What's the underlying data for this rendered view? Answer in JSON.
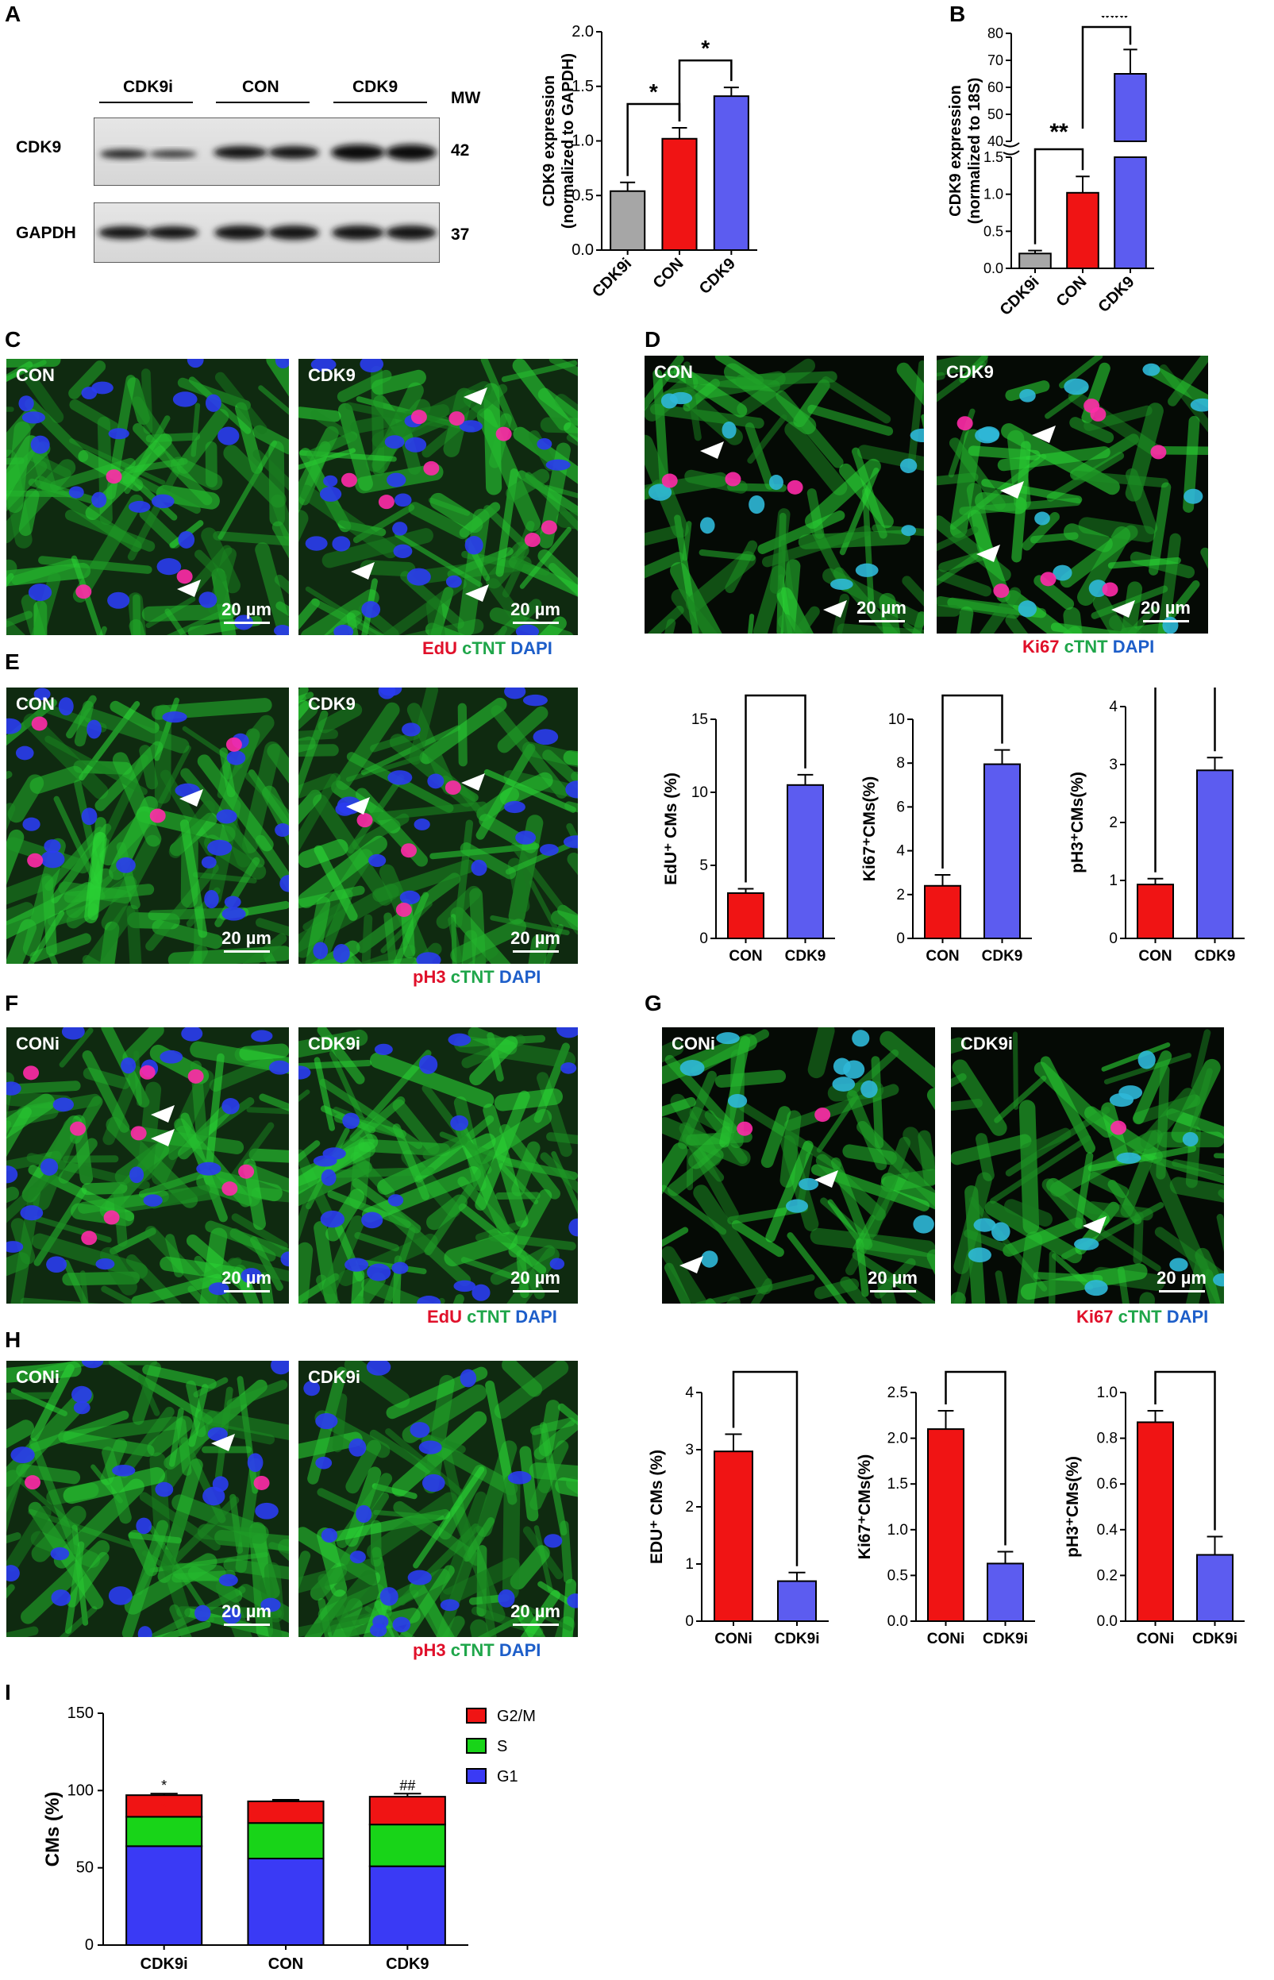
{
  "panel_letters": {
    "A": "A",
    "B": "B",
    "C": "C",
    "D": "D",
    "E": "E",
    "F": "F",
    "G": "G",
    "H": "H",
    "I": "I"
  },
  "western_blot": {
    "groups": [
      "CDK9i",
      "CON",
      "CDK9"
    ],
    "mw_label": "MW",
    "rows": [
      {
        "name": "CDK9",
        "mw": "42"
      },
      {
        "name": "GAPDH",
        "mw": "37"
      }
    ]
  },
  "micrographs": {
    "C": {
      "left": "CON",
      "right": "CDK9",
      "scale": "20 µm",
      "stain": {
        "red": "EdU",
        "green": "cTNT",
        "blue": "DAPI"
      }
    },
    "D": {
      "left": "CON",
      "right": "CDK9",
      "scale": "20 µm",
      "stain": {
        "red": "Ki67",
        "green": "cTNT",
        "blue": "DAPI"
      }
    },
    "E": {
      "left": "CON",
      "right": "CDK9",
      "scale": "20 µm",
      "stain": {
        "red": "pH3",
        "green": "cTNT",
        "blue": "DAPI"
      }
    },
    "F": {
      "left": "CONi",
      "right": "CDK9i",
      "scale": "20 µm",
      "stain": {
        "red": "EdU",
        "green": "cTNT",
        "blue": "DAPI"
      }
    },
    "G": {
      "left": "CONi",
      "right": "CDK9i",
      "scale": "20 µm",
      "stain": {
        "red": "Ki67",
        "green": "cTNT",
        "blue": "DAPI"
      }
    },
    "H": {
      "left": "CONi",
      "right": "CDK9i",
      "scale": "20 µm",
      "stain": {
        "red": "pH3",
        "green": "cTNT",
        "blue": "DAPI"
      }
    }
  },
  "colors": {
    "grey": "#a6a6a6",
    "red": "#f01414",
    "blue": "#5c5cf0",
    "green": "#18d418",
    "sig_line": "#000000"
  },
  "chart_data": [
    {
      "id": "A-bar",
      "type": "bar",
      "categories": [
        "CDK9i",
        "CON",
        "CDK9"
      ],
      "values": [
        0.54,
        1.02,
        1.41
      ],
      "errors": [
        0.08,
        0.1,
        0.08
      ],
      "colors": [
        "#a6a6a6",
        "#f01414",
        "#5c5cf0"
      ],
      "ylabel_line1": "CDK9 expression",
      "ylabel_line2": "(normalized to GAPDH)",
      "ylim": [
        0,
        2.0
      ],
      "yticks": [
        "0.0",
        "0.5",
        "1.0",
        "1.5",
        "2.0"
      ],
      "yticks_val": [
        0,
        0.5,
        1.0,
        1.5,
        2.0
      ],
      "sig": [
        {
          "from": 0,
          "to": 1,
          "label": "*"
        },
        {
          "from": 1,
          "to": 2,
          "label": "*"
        }
      ]
    },
    {
      "id": "B-bar",
      "type": "bar",
      "broken_axis": true,
      "categories": [
        "CDK9i",
        "CON",
        "CDK9"
      ],
      "values": [
        0.2,
        1.02,
        65
      ],
      "errors": [
        0.04,
        0.22,
        9
      ],
      "colors": [
        "#a6a6a6",
        "#f01414",
        "#5c5cf0"
      ],
      "ylabel_line1": "CDK9 expression",
      "ylabel_line2": "(normalized to 18S)",
      "lower_ylim": [
        0,
        1.5
      ],
      "lower_yticks": [
        "0.0",
        "0.5",
        "1.0",
        "1.5"
      ],
      "lower_yticks_val": [
        0,
        0.5,
        1.0,
        1.5
      ],
      "upper_ylim": [
        40,
        80
      ],
      "upper_yticks": [
        "40",
        "50",
        "60",
        "70",
        "80"
      ],
      "upper_yticks_val": [
        40,
        50,
        60,
        70,
        80
      ],
      "sig": [
        {
          "from": 0,
          "to": 1,
          "label": "**"
        },
        {
          "from": 1,
          "to": 2,
          "label": "***"
        }
      ]
    },
    {
      "id": "E1",
      "type": "bar",
      "categories": [
        "CON",
        "CDK9"
      ],
      "values": [
        3.1,
        10.5
      ],
      "errors": [
        0.3,
        0.7
      ],
      "colors": [
        "#f01414",
        "#5c5cf0"
      ],
      "ylabel": "EdU⁺ CMs (%)",
      "ylim": [
        0,
        15
      ],
      "yticks": [
        "0",
        "5",
        "10",
        "15"
      ],
      "yticks_val": [
        0,
        5,
        10,
        15
      ],
      "sig": [
        {
          "from": 0,
          "to": 1,
          "label": "***"
        }
      ]
    },
    {
      "id": "E2",
      "type": "bar",
      "categories": [
        "CON",
        "CDK9"
      ],
      "values": [
        2.4,
        7.95
      ],
      "errors": [
        0.5,
        0.65
      ],
      "colors": [
        "#f01414",
        "#5c5cf0"
      ],
      "ylabel": "Ki67⁺CMs(%)",
      "ylim": [
        0,
        10
      ],
      "yticks": [
        "0",
        "2",
        "4",
        "6",
        "8",
        "10"
      ],
      "yticks_val": [
        0,
        2,
        4,
        6,
        8,
        10
      ],
      "sig": [
        {
          "from": 0,
          "to": 1,
          "label": "***"
        }
      ]
    },
    {
      "id": "E3",
      "type": "bar",
      "categories": [
        "CON",
        "CDK9"
      ],
      "values": [
        0.93,
        2.9
      ],
      "errors": [
        0.1,
        0.22
      ],
      "colors": [
        "#f01414",
        "#5c5cf0"
      ],
      "ylabel": "pH3⁺CMs(%)",
      "ylim": [
        0,
        4
      ],
      "yticks": [
        "0",
        "1",
        "2",
        "3",
        "4"
      ],
      "yticks_val": [
        0,
        1,
        2,
        3,
        4
      ],
      "sig": [
        {
          "from": 0,
          "to": 1,
          "label": "***"
        }
      ]
    },
    {
      "id": "H1",
      "type": "bar",
      "categories": [
        "CONi",
        "CDK9i"
      ],
      "values": [
        2.97,
        0.7
      ],
      "errors": [
        0.3,
        0.15
      ],
      "colors": [
        "#f01414",
        "#5c5cf0"
      ],
      "ylabel": "EDU⁺ CMs (%)",
      "ylim": [
        0,
        4
      ],
      "yticks": [
        "0",
        "1",
        "2",
        "3",
        "4"
      ],
      "yticks_val": [
        0,
        1,
        2,
        3,
        4
      ],
      "sig": [
        {
          "from": 0,
          "to": 1,
          "label": "**"
        }
      ]
    },
    {
      "id": "H2",
      "type": "bar",
      "categories": [
        "CONi",
        "CDK9i"
      ],
      "values": [
        2.1,
        0.63
      ],
      "errors": [
        0.2,
        0.13
      ],
      "colors": [
        "#f01414",
        "#5c5cf0"
      ],
      "ylabel": "Ki67⁺CMs(%)",
      "ylim": [
        0,
        2.5
      ],
      "yticks": [
        "0.0",
        "0.5",
        "1.0",
        "1.5",
        "2.0",
        "2.5"
      ],
      "yticks_val": [
        0,
        0.5,
        1.0,
        1.5,
        2.0,
        2.5
      ],
      "sig": [
        {
          "from": 0,
          "to": 1,
          "label": "***"
        }
      ]
    },
    {
      "id": "H3",
      "type": "bar",
      "categories": [
        "CONi",
        "CDK9i"
      ],
      "values": [
        0.87,
        0.29
      ],
      "errors": [
        0.05,
        0.08
      ],
      "colors": [
        "#f01414",
        "#5c5cf0"
      ],
      "ylabel": "pH3⁺CMs(%)",
      "ylim": [
        0,
        1.0
      ],
      "yticks": [
        "0.0",
        "0.2",
        "0.4",
        "0.6",
        "0.8",
        "1.0"
      ],
      "yticks_val": [
        0,
        0.2,
        0.4,
        0.6,
        0.8,
        1.0
      ],
      "sig": [
        {
          "from": 0,
          "to": 1,
          "label": "**"
        }
      ]
    },
    {
      "id": "I-stacked",
      "type": "bar",
      "stacked": true,
      "categories": [
        "CDK9i",
        "CON",
        "CDK9"
      ],
      "series": [
        {
          "name": "G1",
          "color": "#3a3af5",
          "values": [
            64,
            56,
            51
          ],
          "errors": [
            2,
            2,
            2
          ]
        },
        {
          "name": "S",
          "color": "#18d418",
          "values": [
            19,
            23,
            27
          ],
          "errors": [
            2,
            2,
            2
          ]
        },
        {
          "name": "G2/M",
          "color": "#f01414",
          "values": [
            14,
            14,
            18
          ],
          "errors": [
            1,
            1,
            2
          ]
        }
      ],
      "ylabel": "CMs (%)",
      "ylim": [
        0,
        150
      ],
      "yticks": [
        "0",
        "50",
        "100",
        "150"
      ],
      "yticks_val": [
        0,
        50,
        100,
        150
      ],
      "annotations": [
        {
          "bar": 0,
          "segment": "top",
          "label": "*",
          "color": "#000000"
        },
        {
          "bar": 0,
          "segment": "G2/M",
          "label": "*",
          "color": "#f01414"
        },
        {
          "bar": 2,
          "segment": "top",
          "label": "##",
          "color": "#000000"
        },
        {
          "bar": 2,
          "segment": "G2/M",
          "label": "##",
          "color": "#f01414"
        }
      ],
      "legend_order": [
        "G2/M",
        "S",
        "G1"
      ]
    }
  ]
}
